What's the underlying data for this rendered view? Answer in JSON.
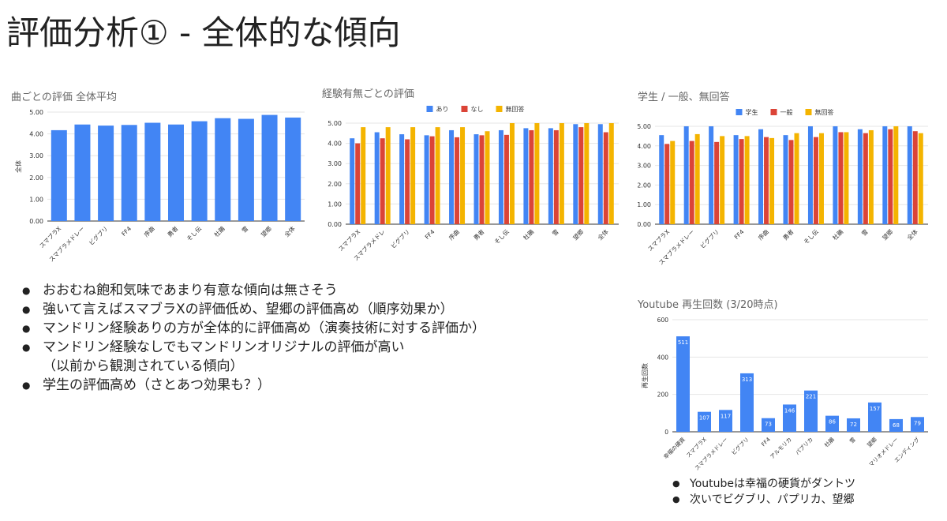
{
  "slide": {
    "title": "評価分析① - 全体的な傾向",
    "bullets": [
      "おおむね飽和気味であまり有意な傾向は無さそう",
      "強いて言えばスマブラXの評価低め、望郷の評価高め（順序効果か）",
      "マンドリン経験ありの方が全体的に評価高め（演奏技術に対する評価か）",
      "マンドリン経験なしでもマンドリンオリジナルの評価が高い",
      "学生の評価高め（さとあつ効果も？）"
    ],
    "bullet_continuation": "（以前から観測されている傾向）",
    "youtube_notes": [
      "Youtubeは幸福の硬貨がダントツ",
      "次いでビグブリ、パプリカ、望郷"
    ]
  },
  "colors": {
    "blue": "#4285f4",
    "red": "#db4437",
    "yellow": "#f4b400",
    "grid": "#e6e6e6",
    "axis": "#333333"
  },
  "chart_data": [
    {
      "type": "bar",
      "title": "曲ごとの評価 全体平均",
      "ylabel": "全体",
      "ylim": [
        0,
        5
      ],
      "yticks": [
        "0.00",
        "1.00",
        "2.00",
        "3.00",
        "4.00",
        "5.00"
      ],
      "categories": [
        "スマブラX",
        "スマブラメドレー",
        "ビグブリ",
        "FF4",
        "序曲",
        "勇者",
        "そし伝",
        "杜鵑",
        "雪",
        "望郷",
        "全体"
      ],
      "series": [
        {
          "values": [
            4.17,
            4.43,
            4.38,
            4.41,
            4.51,
            4.43,
            4.58,
            4.72,
            4.69,
            4.87,
            4.75
          ]
        }
      ]
    },
    {
      "type": "bar",
      "title": "経験有無ごとの評価",
      "ylim": [
        0,
        5
      ],
      "yticks": [
        "0.00",
        "1.00",
        "2.00",
        "3.00",
        "4.00",
        "5.00"
      ],
      "categories": [
        "スマブラX",
        "スマブラメドレ",
        "ビグブリ",
        "FF4",
        "序曲",
        "勇者",
        "そし伝",
        "杜鵑",
        "雪",
        "望郷",
        "全体"
      ],
      "series": [
        {
          "name": "あり",
          "values": [
            4.25,
            4.55,
            4.45,
            4.4,
            4.65,
            4.45,
            4.65,
            4.75,
            4.75,
            4.95,
            4.95
          ]
        },
        {
          "name": "なし",
          "values": [
            4.0,
            4.25,
            4.2,
            4.35,
            4.3,
            4.4,
            4.42,
            4.65,
            4.65,
            4.8,
            4.55
          ]
        },
        {
          "name": "無回答",
          "values": [
            4.8,
            4.8,
            4.8,
            4.8,
            4.8,
            4.6,
            5.0,
            5.0,
            5.0,
            5.0,
            5.0
          ]
        }
      ]
    },
    {
      "type": "bar",
      "title": "学生 / 一般、無回答",
      "ylim": [
        0,
        5
      ],
      "yticks": [
        "0.00",
        "1.00",
        "2.00",
        "3.00",
        "4.00",
        "5.00"
      ],
      "categories": [
        "スマブラX",
        "スマブラメドレー",
        "ビグブリ",
        "FF4",
        "序曲",
        "勇者",
        "そし伝",
        "杜鵑",
        "雪",
        "望郷",
        "全体"
      ],
      "series": [
        {
          "name": "学生",
          "values": [
            4.55,
            5.0,
            5.0,
            4.55,
            4.85,
            4.55,
            5.0,
            5.0,
            4.85,
            5.0,
            5.0
          ]
        },
        {
          "name": "一般",
          "values": [
            4.1,
            4.25,
            4.2,
            4.35,
            4.45,
            4.3,
            4.45,
            4.7,
            4.65,
            4.85,
            4.75
          ]
        },
        {
          "name": "無回答",
          "values": [
            4.25,
            4.6,
            4.5,
            4.5,
            4.4,
            4.65,
            4.65,
            4.7,
            4.8,
            5.0,
            4.65
          ]
        }
      ]
    },
    {
      "type": "bar",
      "title": "Youtube 再生回数 (3/20時点)",
      "ylabel": "再生回数",
      "ylim": [
        0,
        600
      ],
      "yticks": [
        "0",
        "200",
        "400",
        "600"
      ],
      "categories": [
        "幸福の硬貨",
        "スマブラX",
        "スマブラメドレー",
        "ビグブリ",
        "FF4",
        "アルモリカ",
        "パプリカ",
        "杜鵑",
        "雪",
        "望郷",
        "マリオメドレー",
        "エンディング"
      ],
      "series": [
        {
          "values": [
            511,
            107,
            117,
            313,
            73,
            146,
            221,
            86,
            72,
            157,
            68,
            79
          ]
        }
      ],
      "data_labels": [
        "511",
        "107",
        "117",
        "313",
        "73",
        "146",
        "221",
        "86",
        "72",
        "157",
        "68",
        "79"
      ]
    }
  ]
}
